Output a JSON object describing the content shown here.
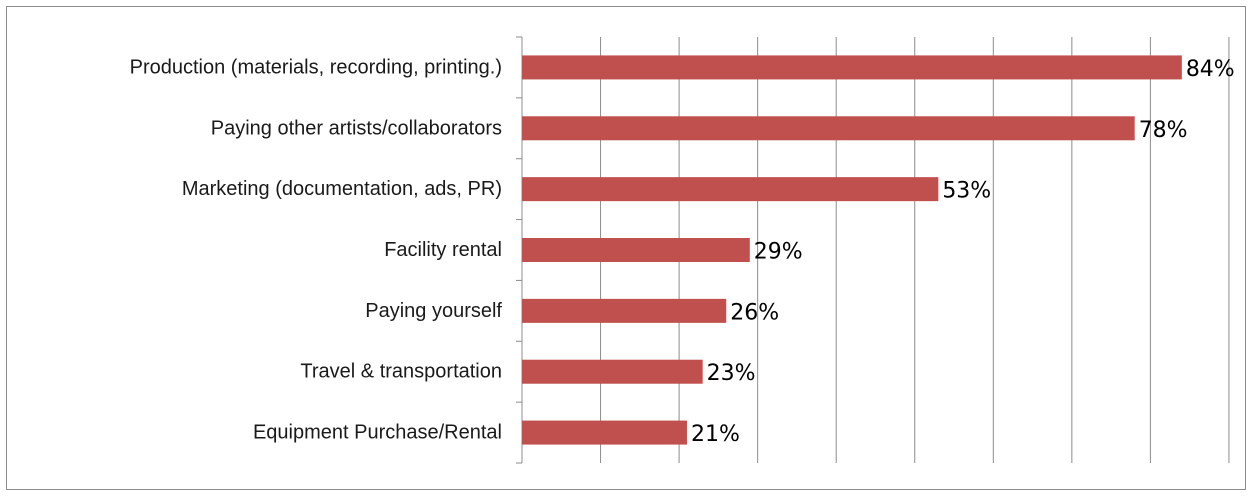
{
  "chart_data": {
    "type": "bar",
    "orientation": "horizontal",
    "categories": [
      "Production (materials, recording, printing.)",
      "Paying other artists/collaborators",
      "Marketing (documentation, ads, PR)",
      "Facility rental",
      "Paying yourself",
      "Travel & transportation",
      "Equipment Purchase/Rental"
    ],
    "values": [
      84,
      78,
      53,
      29,
      26,
      23,
      21
    ],
    "value_labels": [
      "84%",
      "78%",
      "53%",
      "29%",
      "26%",
      "23%",
      "21%"
    ],
    "unit": "%",
    "xlim": [
      0,
      90
    ],
    "x_gridlines": [
      10,
      20,
      30,
      40,
      50,
      60,
      70,
      80,
      90
    ],
    "grid": true,
    "legend": "none",
    "title": "",
    "xlabel": "",
    "ylabel": ""
  },
  "colors": {
    "bar": "#c0504d",
    "grid": "#8c8c8c",
    "frame": "#8c8c8c",
    "label": "#1a1a1a"
  }
}
